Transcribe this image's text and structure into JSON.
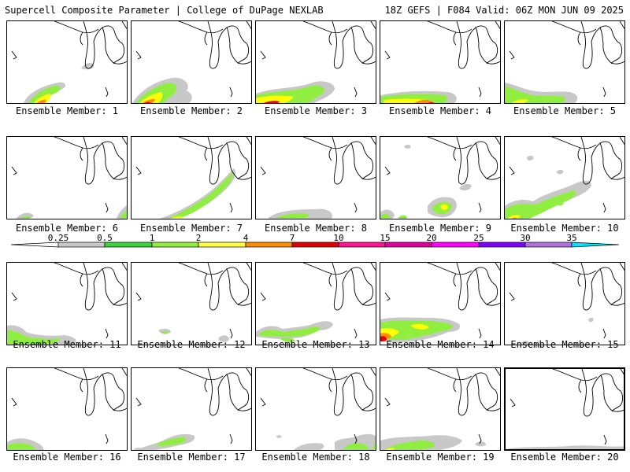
{
  "header": {
    "left": "Supercell Composite Parameter | College of DuPage NEXLAB",
    "right": "18Z GEFS | F084 Valid: 06Z MON JUN 09 2025"
  },
  "colors": {
    "gray": "#c8c8c8",
    "light_green": "#90ee40",
    "green": "#3cd23c",
    "yellow": "#ffff00",
    "orange": "#ff8c00",
    "red": "#e00000",
    "magenta": "#ff00ff",
    "purple": "#8000ff",
    "lavender": "#b070e0",
    "cyan": "#00e5ff"
  },
  "colorbar": {
    "ticks": [
      "0.25",
      "0.5",
      "1",
      "2",
      "4",
      "7",
      "10",
      "15",
      "20",
      "25",
      "30",
      "35"
    ],
    "colors": [
      "#c8c8c8",
      "#3cd23c",
      "#90ee40",
      "#ffff40",
      "#ff8c00",
      "#e00000",
      "#ff1493",
      "#e000a0",
      "#ff00ff",
      "#8000ff",
      "#b070e0",
      "#00e5ff"
    ]
  },
  "members": [
    {
      "label": "Ensemble Member: 1"
    },
    {
      "label": "Ensemble Member: 2"
    },
    {
      "label": "Ensemble Member: 3"
    },
    {
      "label": "Ensemble Member: 4"
    },
    {
      "label": "Ensemble Member: 5"
    },
    {
      "label": "Ensemble Member: 6"
    },
    {
      "label": "Ensemble Member: 7"
    },
    {
      "label": "Ensemble Member: 8"
    },
    {
      "label": "Ensemble Member: 9"
    },
    {
      "label": "Ensemble Member: 10"
    },
    {
      "label": "Ensemble Member: 11"
    },
    {
      "label": "Ensemble Member: 12"
    },
    {
      "label": "Ensemble Member: 13"
    },
    {
      "label": "Ensemble Member: 14"
    },
    {
      "label": "Ensemble Member: 15"
    },
    {
      "label": "Ensemble Member: 16"
    },
    {
      "label": "Ensemble Member: 17"
    },
    {
      "label": "Ensemble Member: 18"
    },
    {
      "label": "Ensemble Member: 19"
    },
    {
      "label": "Ensemble Member: 20"
    }
  ]
}
